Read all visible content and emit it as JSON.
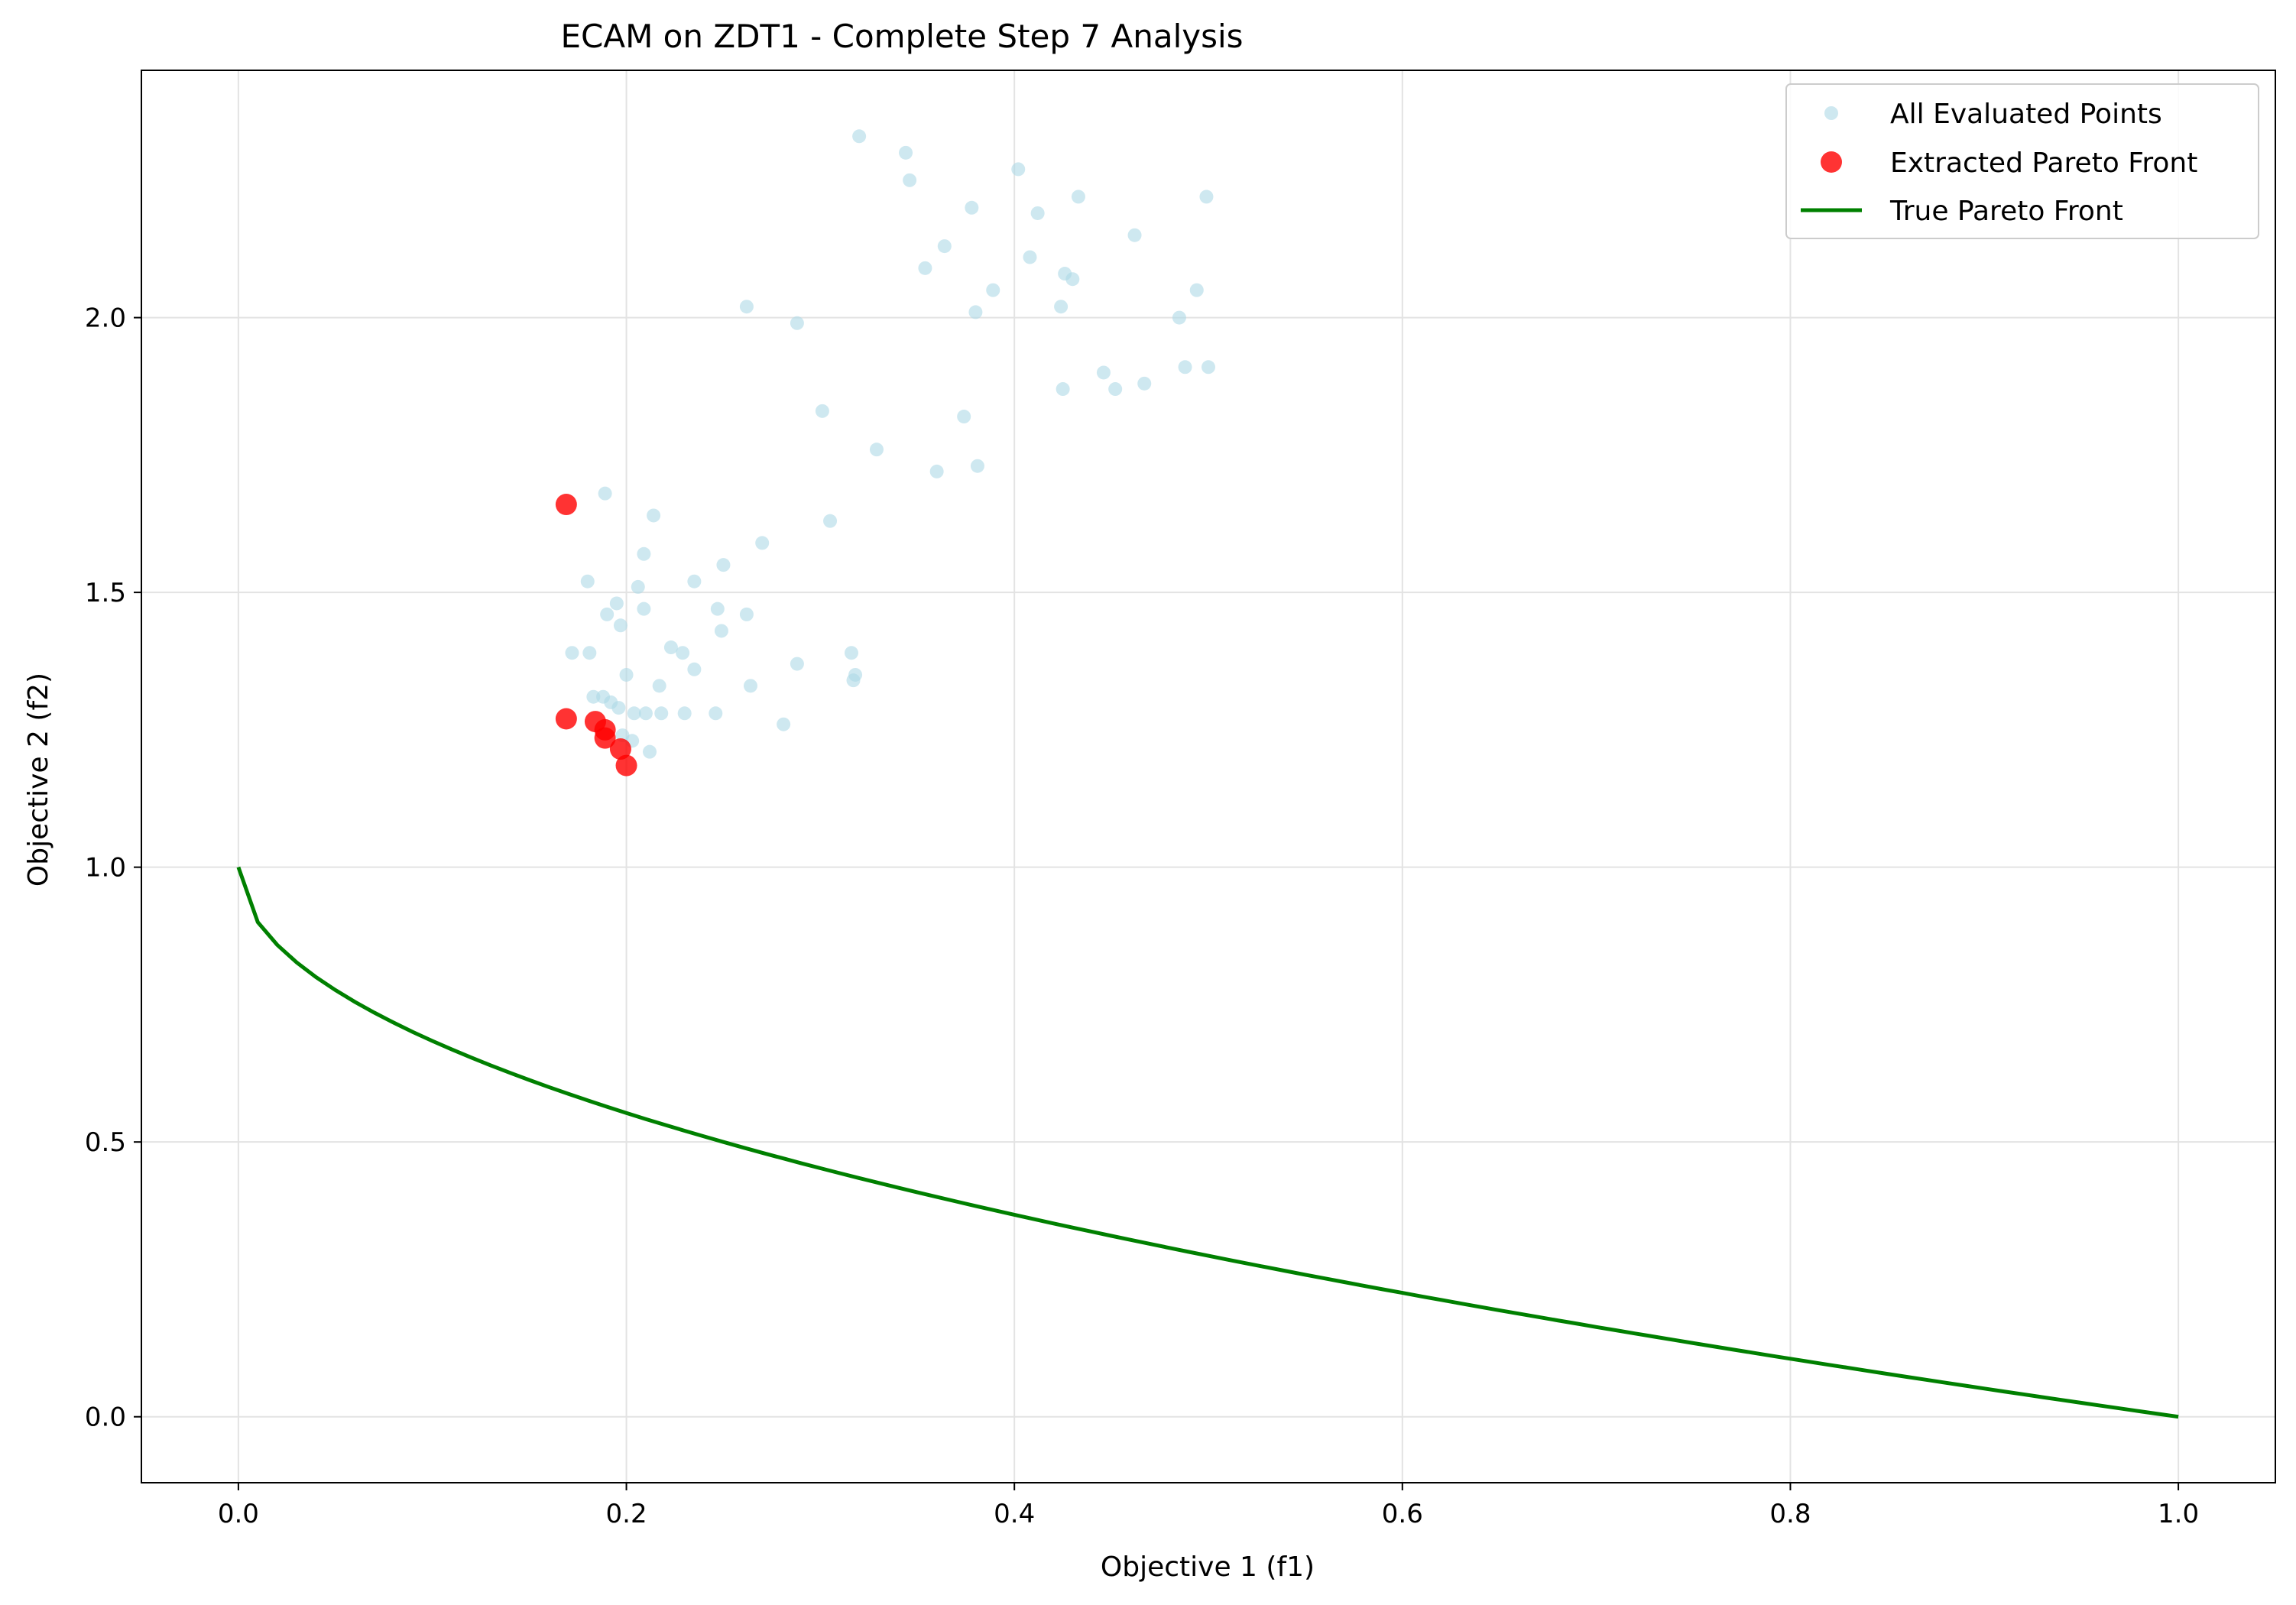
{
  "chart_data": {
    "type": "scatter",
    "title": "ECAM on ZDT1 - Complete Step 7 Analysis",
    "xlabel": "Objective 1 (f1)",
    "ylabel": "Objective 2 (f2)",
    "xlim": [
      -0.05,
      1.05
    ],
    "ylim": [
      -0.12,
      2.45
    ],
    "xticks": [
      0.0,
      0.2,
      0.4,
      0.6,
      0.8,
      1.0
    ],
    "xtick_labels": [
      "0.0",
      "0.2",
      "0.4",
      "0.6",
      "0.8",
      "1.0"
    ],
    "yticks": [
      0.0,
      0.5,
      1.0,
      1.5,
      2.0
    ],
    "ytick_labels": [
      "0.0",
      "0.5",
      "1.0",
      "1.5",
      "2.0"
    ],
    "grid": true,
    "legend_position": "top-right",
    "series": [
      {
        "name": "All Evaluated Points",
        "kind": "scatter",
        "color": "#add8e6",
        "points": [
          [
            0.32,
            2.33
          ],
          [
            0.344,
            2.3
          ],
          [
            0.346,
            2.25
          ],
          [
            0.402,
            2.27
          ],
          [
            0.378,
            2.2
          ],
          [
            0.412,
            2.19
          ],
          [
            0.433,
            2.22
          ],
          [
            0.499,
            2.22
          ],
          [
            0.364,
            2.13
          ],
          [
            0.354,
            2.09
          ],
          [
            0.408,
            2.11
          ],
          [
            0.426,
            2.08
          ],
          [
            0.43,
            2.07
          ],
          [
            0.462,
            2.15
          ],
          [
            0.494,
            2.05
          ],
          [
            0.389,
            2.05
          ],
          [
            0.262,
            2.02
          ],
          [
            0.288,
            1.99
          ],
          [
            0.38,
            2.01
          ],
          [
            0.424,
            2.02
          ],
          [
            0.485,
            2.0
          ],
          [
            0.446,
            1.9
          ],
          [
            0.488,
            1.91
          ],
          [
            0.5,
            1.91
          ],
          [
            0.425,
            1.87
          ],
          [
            0.452,
            1.87
          ],
          [
            0.467,
            1.88
          ],
          [
            0.301,
            1.83
          ],
          [
            0.374,
            1.82
          ],
          [
            0.329,
            1.76
          ],
          [
            0.36,
            1.72
          ],
          [
            0.381,
            1.73
          ],
          [
            0.189,
            1.68
          ],
          [
            0.214,
            1.64
          ],
          [
            0.305,
            1.63
          ],
          [
            0.27,
            1.59
          ],
          [
            0.209,
            1.57
          ],
          [
            0.25,
            1.55
          ],
          [
            0.18,
            1.52
          ],
          [
            0.206,
            1.51
          ],
          [
            0.235,
            1.52
          ],
          [
            0.195,
            1.48
          ],
          [
            0.209,
            1.47
          ],
          [
            0.247,
            1.47
          ],
          [
            0.19,
            1.46
          ],
          [
            0.262,
            1.46
          ],
          [
            0.197,
            1.44
          ],
          [
            0.249,
            1.43
          ],
          [
            0.172,
            1.39
          ],
          [
            0.181,
            1.39
          ],
          [
            0.223,
            1.4
          ],
          [
            0.229,
            1.39
          ],
          [
            0.316,
            1.39
          ],
          [
            0.235,
            1.36
          ],
          [
            0.288,
            1.37
          ],
          [
            0.2,
            1.35
          ],
          [
            0.318,
            1.35
          ],
          [
            0.317,
            1.34
          ],
          [
            0.217,
            1.33
          ],
          [
            0.264,
            1.33
          ],
          [
            0.183,
            1.31
          ],
          [
            0.188,
            1.31
          ],
          [
            0.192,
            1.3
          ],
          [
            0.196,
            1.29
          ],
          [
            0.218,
            1.28
          ],
          [
            0.204,
            1.28
          ],
          [
            0.21,
            1.28
          ],
          [
            0.23,
            1.28
          ],
          [
            0.246,
            1.28
          ],
          [
            0.281,
            1.26
          ],
          [
            0.198,
            1.24
          ],
          [
            0.203,
            1.23
          ],
          [
            0.212,
            1.21
          ]
        ]
      },
      {
        "name": "Extracted Pareto Front",
        "kind": "scatter",
        "color": "#ff0000",
        "points": [
          [
            0.169,
            1.66
          ],
          [
            0.169,
            1.27
          ],
          [
            0.184,
            1.265
          ],
          [
            0.189,
            1.25
          ],
          [
            0.189,
            1.235
          ],
          [
            0.197,
            1.215
          ],
          [
            0.2,
            1.185
          ]
        ]
      },
      {
        "name": "True Pareto Front",
        "kind": "line",
        "color": "#008000",
        "function": "f2 = 1 - sqrt(f1)",
        "x_range": [
          0.0,
          1.0
        ]
      }
    ]
  }
}
